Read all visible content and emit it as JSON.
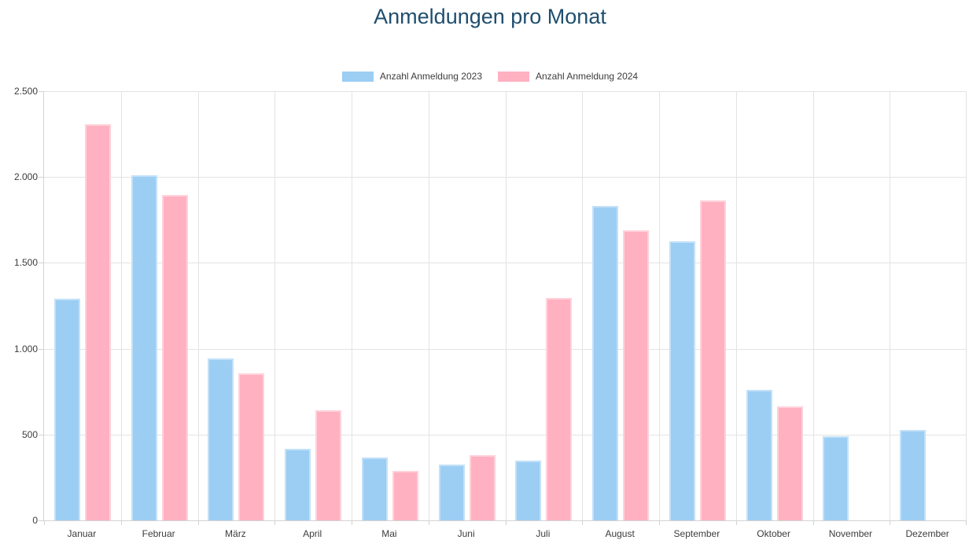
{
  "page_title": "Anmeldungen pro Monat",
  "colors": {
    "title_text": "#1f4e6e",
    "tick_text": "#3c3c3c",
    "gridline": "#e3e3e3",
    "axis_line": "#d3d3d3",
    "series_2023_fill": "#9ccef4",
    "series_2023_border": "#c3e1f8",
    "series_2024_fill": "#ffb1c1",
    "series_2024_border": "#ffd2db"
  },
  "chart_data": {
    "type": "bar",
    "title": "Anmeldungen pro Monat",
    "categories": [
      "Januar",
      "Februar",
      "März",
      "April",
      "Mai",
      "Juni",
      "Juli",
      "August",
      "September",
      "Oktober",
      "November",
      "Dezember"
    ],
    "series": [
      {
        "name": "Anzahl Anmeldung 2023",
        "color": "#9ccef4",
        "border_color": "#c3e1f8",
        "values": [
          1290,
          2010,
          945,
          415,
          365,
          325,
          350,
          1830,
          1625,
          760,
          490,
          525
        ]
      },
      {
        "name": "Anzahl Anmeldung 2024",
        "color": "#ffb1c1",
        "border_color": "#ffd2db",
        "values": [
          2310,
          1895,
          855,
          640,
          290,
          380,
          1295,
          1690,
          1865,
          665,
          0,
          0
        ]
      }
    ],
    "ylim": [
      0,
      2500
    ],
    "ytick_step": 500,
    "ytick_labels": [
      "0",
      "500",
      "1.000",
      "1.500",
      "2.000",
      "2.500"
    ],
    "grid": true,
    "legend_position": "top",
    "xlabel": "",
    "ylabel": ""
  }
}
